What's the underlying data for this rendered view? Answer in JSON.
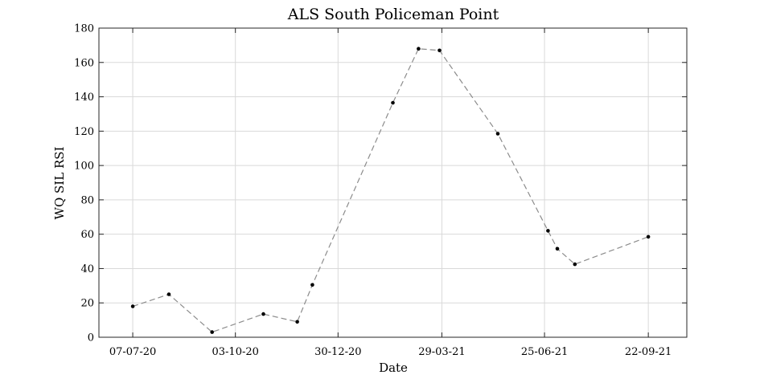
{
  "chart_data": {
    "type": "line",
    "title": "ALS South Policeman Point",
    "xlabel": "Date",
    "ylabel": "WQ SIL RSI",
    "x_ticks": [
      "07-07-20",
      "03-10-20",
      "30-12-20",
      "29-03-21",
      "25-06-21",
      "22-09-21"
    ],
    "xlim": [
      "2020-06-08",
      "2021-10-25"
    ],
    "ylim": [
      0,
      180
    ],
    "y_ticks": [
      0,
      20,
      40,
      60,
      80,
      100,
      120,
      140,
      160,
      180
    ],
    "grid": true,
    "series": [
      {
        "x": [
          "2020-07-07",
          "2020-08-07",
          "2020-09-13",
          "2020-10-27",
          "2020-11-25",
          "2020-12-08",
          "2021-02-15",
          "2021-03-09",
          "2021-03-27",
          "2021-05-16",
          "2021-06-28",
          "2021-07-06",
          "2021-07-21",
          "2021-09-22"
        ],
        "values": [
          18,
          25,
          3,
          13.5,
          9,
          30.5,
          136.5,
          168,
          167,
          118.5,
          62,
          51.5,
          42.5,
          58.5
        ],
        "color": "#8c8c8c",
        "marker_color": "#000000"
      }
    ]
  }
}
